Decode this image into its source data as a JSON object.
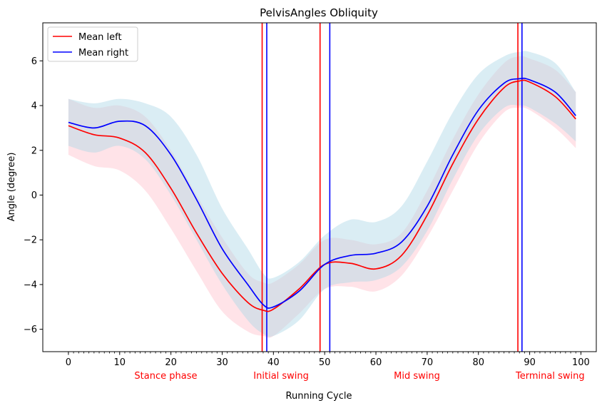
{
  "chart_data": {
    "type": "line",
    "title": "PelvisAngles Obliquity",
    "xlabel": "Running Cycle",
    "ylabel": "Angle (degree)",
    "xlim": [
      -5,
      103
    ],
    "ylim": [
      -7.0,
      7.7
    ],
    "xticks": [
      0,
      10,
      20,
      30,
      40,
      50,
      60,
      70,
      80,
      90,
      100
    ],
    "yticks": [
      -6,
      -4,
      -2,
      0,
      2,
      4,
      6
    ],
    "ytick_labels": [
      "−6",
      "−4",
      "−2",
      "0",
      "2",
      "4",
      "6"
    ],
    "legend_position": "top-left",
    "x": [
      0,
      5,
      10,
      15,
      20,
      25,
      30,
      35,
      38,
      40,
      45,
      50,
      55,
      60,
      65,
      70,
      75,
      80,
      85,
      88,
      90,
      95,
      99
    ],
    "series": [
      {
        "name": "Mean left",
        "color": "#ff0000",
        "band_color": "#ffc0cb",
        "values": [
          3.1,
          2.7,
          2.55,
          1.9,
          0.3,
          -1.7,
          -3.5,
          -4.8,
          -5.15,
          -5.1,
          -4.2,
          -3.1,
          -3.05,
          -3.3,
          -2.7,
          -0.9,
          1.4,
          3.4,
          4.8,
          5.1,
          5.05,
          4.4,
          3.4
        ],
        "lower": [
          1.8,
          1.3,
          1.1,
          0.2,
          -1.5,
          -3.4,
          -5.2,
          -6.1,
          -6.3,
          -6.3,
          -5.3,
          -4.2,
          -4.1,
          -4.3,
          -3.6,
          -1.9,
          0.2,
          2.3,
          3.7,
          3.9,
          3.8,
          3.0,
          2.1
        ],
        "upper": [
          4.3,
          3.9,
          4.0,
          3.5,
          2.0,
          0.0,
          -1.9,
          -3.5,
          -3.9,
          -3.9,
          -3.1,
          -2.0,
          -2.0,
          -2.2,
          -1.7,
          0.2,
          2.5,
          4.5,
          5.9,
          6.2,
          6.1,
          5.6,
          4.6
        ],
        "events": [
          {
            "x": 37.8,
            "label": "Initial swing"
          },
          {
            "x": 49.1,
            "label": ""
          },
          {
            "x": 87.7,
            "label": ""
          }
        ]
      },
      {
        "name": "Mean right",
        "color": "#0000ff",
        "band_color": "#add8e6",
        "values": [
          3.25,
          3.0,
          3.3,
          3.1,
          1.8,
          -0.2,
          -2.4,
          -4.0,
          -4.9,
          -5.0,
          -4.3,
          -3.1,
          -2.7,
          -2.6,
          -2.1,
          -0.5,
          1.8,
          3.8,
          5.0,
          5.2,
          5.15,
          4.6,
          3.55
        ],
        "lower": [
          2.2,
          1.9,
          2.2,
          1.6,
          0.0,
          -2.0,
          -4.0,
          -5.6,
          -6.2,
          -6.3,
          -5.6,
          -4.2,
          -3.9,
          -3.8,
          -3.2,
          -1.6,
          0.7,
          2.7,
          3.9,
          4.0,
          3.9,
          3.2,
          2.4
        ],
        "upper": [
          4.3,
          4.1,
          4.3,
          4.1,
          3.5,
          1.8,
          -0.6,
          -2.4,
          -3.5,
          -3.7,
          -3.0,
          -1.8,
          -1.1,
          -1.2,
          -0.5,
          1.5,
          3.7,
          5.4,
          6.2,
          6.4,
          6.4,
          5.9,
          4.6
        ],
        "events": [
          {
            "x": 38.7,
            "label": ""
          },
          {
            "x": 51.0,
            "label": ""
          },
          {
            "x": 88.5,
            "label": ""
          }
        ]
      }
    ],
    "phase_labels": [
      {
        "x": 19,
        "label": "Stance phase"
      },
      {
        "x": 41.5,
        "label": "Initial swing"
      },
      {
        "x": 68,
        "label": "Mid swing"
      },
      {
        "x": 94,
        "label": "Terminal swing"
      }
    ]
  }
}
